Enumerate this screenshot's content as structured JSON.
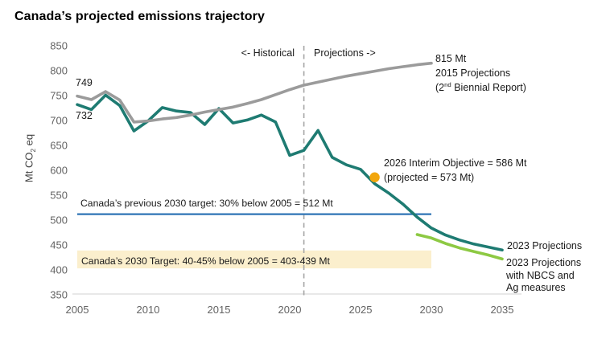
{
  "title": "Canada’s projected emissions trajectory",
  "labels": {
    "historical": "<- Historical",
    "projections": "Projections ->",
    "grey_start_value": "749",
    "teal_start_value": "732",
    "grey_end": {
      "line1": "815 Mt",
      "line2": "2015 Projections",
      "line3_pre": "(2",
      "line3_sup": "nd",
      "line3_post": " Biennial Report)"
    },
    "interim": {
      "line1": "2026 Interim Objective = 586 Mt",
      "line2": "(projected = 573 Mt)"
    },
    "previous_target": "Canada’s previous 2030 target: 30% below 2005 = 512 Mt",
    "target_2030": "Canada’s 2030 Target: 40-45% below 2005 = 403-439 Mt",
    "proj_2023": "2023 Projections",
    "proj_nbcs": {
      "line1": "2023 Projections",
      "line2": "with NBCS and",
      "line3": "Ag measures"
    },
    "y_axis": {
      "pre": "Mt CO",
      "sub": "2",
      "post": " eq"
    }
  },
  "chart_data": {
    "type": "line",
    "title": "Canada’s projected emissions trajectory",
    "xlabel": "",
    "ylabel": "Mt CO2 eq",
    "x_range": [
      2005,
      2035
    ],
    "y_range": [
      350,
      850
    ],
    "x_ticks": [
      2005,
      2010,
      2015,
      2020,
      2025,
      2030,
      2035
    ],
    "y_ticks": [
      850,
      800,
      750,
      700,
      650,
      600,
      550,
      500,
      450,
      400,
      350
    ],
    "grid": false,
    "legend_position": "inline-annotations",
    "divider_year": 2021,
    "series": [
      {
        "id": "historical-and-2023-projections-line",
        "name": "Historical emissions and 2023 Projections",
        "color": "#1E7B72",
        "years": [
          2005,
          2006,
          2007,
          2008,
          2009,
          2010,
          2011,
          2012,
          2013,
          2014,
          2015,
          2016,
          2017,
          2018,
          2019,
          2020,
          2021,
          2022,
          2023,
          2024,
          2025,
          2026,
          2027,
          2028,
          2029,
          2030,
          2031,
          2032,
          2033,
          2034,
          2035
        ],
        "values": [
          732,
          722,
          751,
          730,
          679,
          699,
          726,
          719,
          716,
          692,
          724,
          695,
          701,
          711,
          697,
          630,
          640,
          680,
          626,
          611,
          602,
          573,
          554,
          532,
          506,
          484,
          470,
          460,
          452,
          446,
          440
        ]
      },
      {
        "id": "projections-2015-line",
        "name": "2015 Projections (2nd Biennial Report)",
        "color": "#9B9B9B",
        "years": [
          2005,
          2006,
          2007,
          2008,
          2009,
          2010,
          2011,
          2012,
          2013,
          2014,
          2015,
          2016,
          2017,
          2018,
          2019,
          2020,
          2021,
          2022,
          2023,
          2024,
          2025,
          2026,
          2027,
          2028,
          2029,
          2030
        ],
        "values": [
          749,
          742,
          758,
          741,
          697,
          699,
          703,
          706,
          711,
          717,
          722,
          727,
          734,
          742,
          752,
          762,
          771,
          777,
          783,
          789,
          794,
          799,
          804,
          808,
          812,
          815
        ]
      },
      {
        "id": "projections-2023-nbcs-line",
        "name": "2023 Projections with NBCS and Ag measures",
        "color": "#8DC943",
        "years": [
          2029,
          2030,
          2031,
          2032,
          2033,
          2034,
          2035
        ],
        "values": [
          471,
          464,
          453,
          444,
          437,
          430,
          422
        ]
      }
    ],
    "point": {
      "name": "2026 Interim Objective",
      "year": 2026,
      "value": 586,
      "projected_value": 573,
      "color": "#F2A60C"
    },
    "reference_line": {
      "label": "Canada’s previous 2030 target: 30% below 2005 = 512 Mt",
      "value": 512,
      "span": [
        2005,
        2030
      ],
      "color": "#2E74B5"
    },
    "target_band": {
      "label": "Canada’s 2030 Target: 40-45% below 2005 = 403-439 Mt",
      "from": 403,
      "to": 439,
      "span": [
        2005,
        2030
      ],
      "color": "#FBEFCD"
    }
  }
}
